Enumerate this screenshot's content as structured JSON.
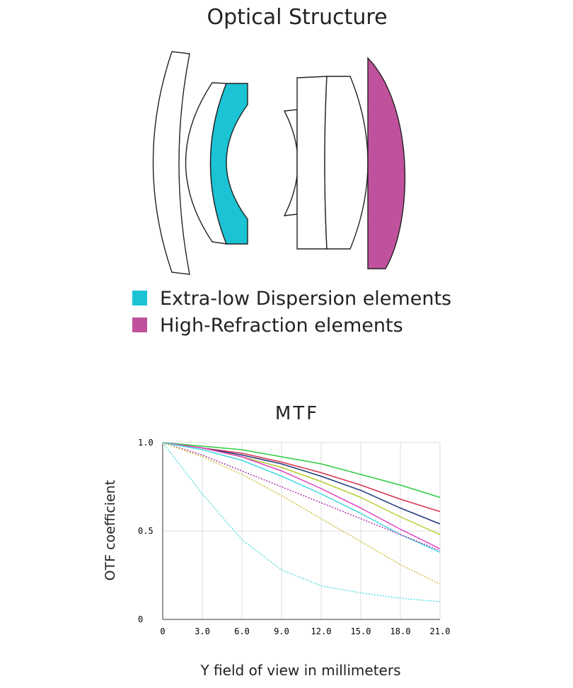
{
  "optical_structure": {
    "title": "Optical Structure",
    "legend": [
      {
        "label": "Extra-low Dispersion elements",
        "color": "#1bc3d4"
      },
      {
        "label": "High-Refraction elements",
        "color": "#c0529d"
      }
    ]
  },
  "chart_data": {
    "type": "line",
    "title": "MTF",
    "x_label": "Y field of view in millimeters",
    "y_label": "OTF coefficient",
    "x": [
      0,
      3,
      6,
      9,
      12,
      15,
      18,
      21
    ],
    "xlim": [
      0,
      21
    ],
    "xticks": [
      0,
      {
        "value": 3,
        "label": "3.0"
      },
      {
        "value": 6,
        "label": "6.0"
      },
      {
        "value": 9,
        "label": "9.0"
      },
      {
        "value": 12,
        "label": "12.0"
      },
      {
        "value": 15,
        "label": "15.0"
      },
      {
        "value": 18,
        "label": "18.0"
      },
      {
        "value": 21,
        "label": "21.0"
      }
    ],
    "ylim": [
      0,
      1
    ],
    "yticks": [
      0,
      0.5,
      {
        "value": 1,
        "label": "1.0"
      }
    ],
    "grid": true,
    "series": [
      {
        "color": "#2ecc40",
        "dashed": false,
        "values": [
          1,
          0.98,
          0.96,
          0.92,
          0.88,
          0.82,
          0.76,
          0.69
        ]
      },
      {
        "color": "#d9334d",
        "dashed": false,
        "values": [
          1,
          0.97,
          0.94,
          0.89,
          0.83,
          0.76,
          0.68,
          0.61
        ]
      },
      {
        "color": "#1f3a7a",
        "dashed": false,
        "values": [
          1,
          0.97,
          0.93,
          0.88,
          0.81,
          0.73,
          0.63,
          0.54
        ]
      },
      {
        "color": "#b5cc2e",
        "dashed": false,
        "values": [
          1,
          0.97,
          0.92,
          0.86,
          0.78,
          0.69,
          0.58,
          0.48
        ]
      },
      {
        "color": "#e040c0",
        "dashed": false,
        "values": [
          1,
          0.97,
          0.92,
          0.84,
          0.74,
          0.63,
          0.51,
          0.4
        ]
      },
      {
        "color": "#40d8e0",
        "dashed": false,
        "values": [
          1,
          0.96,
          0.9,
          0.81,
          0.71,
          0.6,
          0.48,
          0.38
        ]
      },
      {
        "color": "#b040b0",
        "dashed": true,
        "values": [
          1,
          0.93,
          0.84,
          0.75,
          0.66,
          0.57,
          0.48,
          0.39
        ]
      },
      {
        "color": "#d0c040",
        "dashed": true,
        "values": [
          1,
          0.92,
          0.82,
          0.7,
          0.57,
          0.44,
          0.31,
          0.2
        ]
      },
      {
        "color": "#60e0e0",
        "dashed": true,
        "values": [
          1,
          0.71,
          0.45,
          0.28,
          0.19,
          0.15,
          0.12,
          0.1
        ]
      }
    ]
  }
}
